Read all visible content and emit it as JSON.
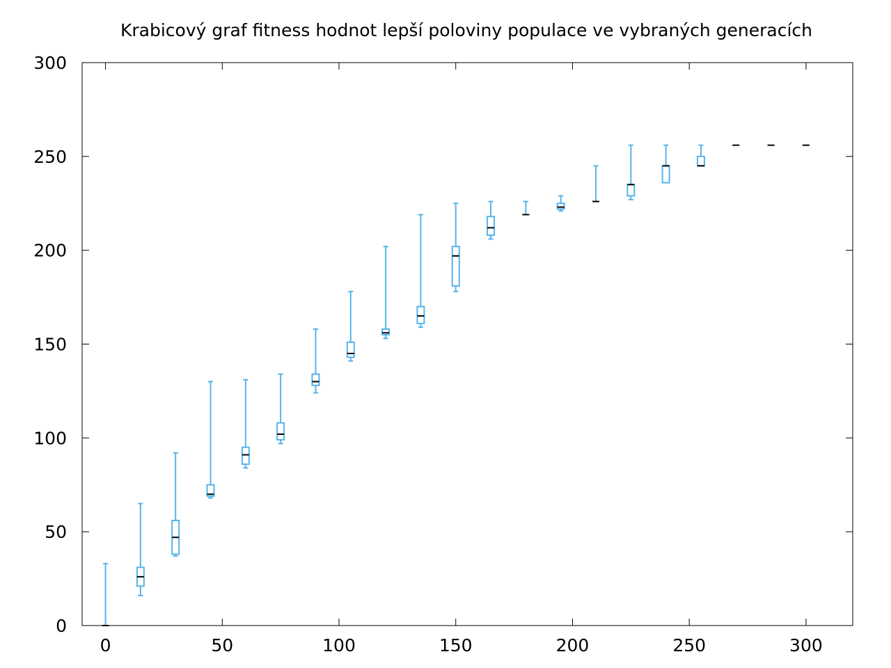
{
  "chart_data": {
    "type": "box",
    "title": "Krabicový graf fitness hodnot lepší poloviny populace ve vybraných generacích",
    "xlabel": "",
    "ylabel": "",
    "xlim": [
      -10,
      320
    ],
    "ylim": [
      0,
      300
    ],
    "xticks": [
      0,
      50,
      100,
      150,
      200,
      250,
      300
    ],
    "yticks": [
      0,
      50,
      100,
      150,
      200,
      250,
      300
    ],
    "box_color": "#56b4e9",
    "median_color": "#000000",
    "grid": false,
    "boxes": [
      {
        "x": 0,
        "min": 0,
        "q1": 0,
        "median": 0,
        "q3": 0,
        "max": 33
      },
      {
        "x": 15,
        "min": 16,
        "q1": 21,
        "median": 26,
        "q3": 31,
        "max": 65
      },
      {
        "x": 30,
        "min": 37,
        "q1": 38,
        "median": 47,
        "q3": 56,
        "max": 92
      },
      {
        "x": 45,
        "min": 68,
        "q1": 69,
        "median": 70,
        "q3": 75,
        "max": 130
      },
      {
        "x": 60,
        "min": 84,
        "q1": 86,
        "median": 91,
        "q3": 95,
        "max": 131
      },
      {
        "x": 75,
        "min": 97,
        "q1": 99,
        "median": 102,
        "q3": 108,
        "max": 134
      },
      {
        "x": 90,
        "min": 124,
        "q1": 128,
        "median": 130,
        "q3": 134,
        "max": 158
      },
      {
        "x": 105,
        "min": 141,
        "q1": 143,
        "median": 145,
        "q3": 151,
        "max": 178
      },
      {
        "x": 120,
        "min": 153,
        "q1": 155,
        "median": 156,
        "q3": 158,
        "max": 202
      },
      {
        "x": 135,
        "min": 159,
        "q1": 161,
        "median": 165,
        "q3": 170,
        "max": 219
      },
      {
        "x": 150,
        "min": 178,
        "q1": 181,
        "median": 197,
        "q3": 202,
        "max": 225
      },
      {
        "x": 165,
        "min": 206,
        "q1": 208,
        "median": 212,
        "q3": 218,
        "max": 226
      },
      {
        "x": 180,
        "min": 219,
        "q1": 219,
        "median": 219,
        "q3": 219,
        "max": 226
      },
      {
        "x": 195,
        "min": 221,
        "q1": 222,
        "median": 223,
        "q3": 225,
        "max": 229
      },
      {
        "x": 210,
        "min": 226,
        "q1": 226,
        "median": 226,
        "q3": 226,
        "max": 245
      },
      {
        "x": 225,
        "min": 227,
        "q1": 229,
        "median": 235,
        "q3": 235,
        "max": 256
      },
      {
        "x": 240,
        "min": 236,
        "q1": 236,
        "median": 245,
        "q3": 245,
        "max": 256
      },
      {
        "x": 255,
        "min": 245,
        "q1": 245,
        "median": 245,
        "q3": 250,
        "max": 256
      },
      {
        "x": 270,
        "min": 256,
        "q1": 256,
        "median": 256,
        "q3": 256,
        "max": 256
      },
      {
        "x": 285,
        "min": 256,
        "q1": 256,
        "median": 256,
        "q3": 256,
        "max": 256
      },
      {
        "x": 300,
        "min": 256,
        "q1": 256,
        "median": 256,
        "q3": 256,
        "max": 256
      }
    ]
  }
}
